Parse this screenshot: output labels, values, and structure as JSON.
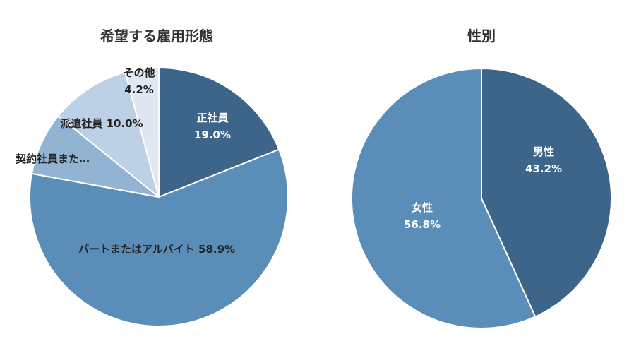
{
  "chart_data": [
    {
      "type": "pie",
      "title": "希望する雇用形態",
      "slices": [
        {
          "label": "正社員",
          "value": 19.0,
          "value_label": "19.0%",
          "color": "#3d6589",
          "label_color": "#ffffff",
          "label_placement": "inside"
        },
        {
          "label": "パートまたはアルバイト",
          "value": 58.9,
          "value_label": "58.9%",
          "color": "#5a8db8",
          "label_color": "#222222",
          "label_placement": "inside-inline"
        },
        {
          "label": "契約社員また…",
          "value": 7.9,
          "value_label": "",
          "color": "#93b3d3",
          "label_color": "#222222",
          "label_placement": "outside"
        },
        {
          "label": "派遣社員",
          "value": 10.0,
          "value_label": "10.0%",
          "color": "#bcd1e5",
          "label_color": "#222222",
          "label_placement": "inside-inline"
        },
        {
          "label": "その他",
          "value": 4.2,
          "value_label": "4.2%",
          "color": "#dfe8f2",
          "label_color": "#222222",
          "label_placement": "inside"
        }
      ]
    },
    {
      "type": "pie",
      "title": "性別",
      "slices": [
        {
          "label": "男性",
          "value": 43.2,
          "value_label": "43.2%",
          "color": "#3d6589",
          "label_color": "#ffffff",
          "label_placement": "inside"
        },
        {
          "label": "女性",
          "value": 56.8,
          "value_label": "56.8%",
          "color": "#5a8db8",
          "label_color": "#ffffff",
          "label_placement": "inside"
        }
      ]
    }
  ]
}
